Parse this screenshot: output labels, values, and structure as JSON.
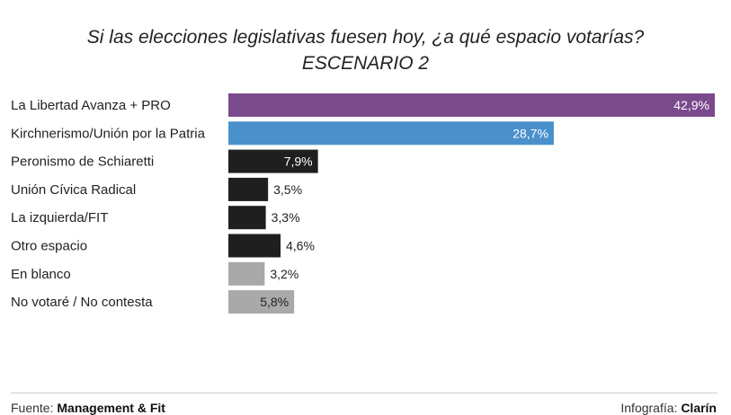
{
  "chart_data": {
    "type": "bar",
    "orientation": "horizontal",
    "title": "Si las elecciones legislativas fuesen hoy, ¿a qué espacio votarías?",
    "subtitle": "ESCENARIO 2",
    "categories": [
      "La Libertad Avanza + PRO",
      "Kirchnerismo/Unión por la Patria",
      "Peronismo de Schiaretti",
      "Unión Cívica Radical",
      "La izquierda/FIT",
      "Otro espacio",
      "En blanco",
      "No votaré / No contesta"
    ],
    "values": [
      42.9,
      28.7,
      7.9,
      3.5,
      3.3,
      4.6,
      3.2,
      5.8
    ],
    "value_labels": [
      "42,9%",
      "28,7%",
      "7,9%",
      "3,5%",
      "3,3%",
      "4,6%",
      "3,2%",
      "5,8%"
    ],
    "colors": [
      "#7b4a8c",
      "#4a90cc",
      "#1f1f1f",
      "#1f1f1f",
      "#1f1f1f",
      "#1f1f1f",
      "#a9a9a9",
      "#a9a9a9"
    ],
    "xlim": [
      0,
      42.9
    ],
    "grid": false,
    "legend": "none"
  },
  "footer": {
    "source_prefix": "Fuente: ",
    "source_name": "Management & Fit",
    "credit_prefix": "Infografía: ",
    "credit_name": "Clarín"
  }
}
